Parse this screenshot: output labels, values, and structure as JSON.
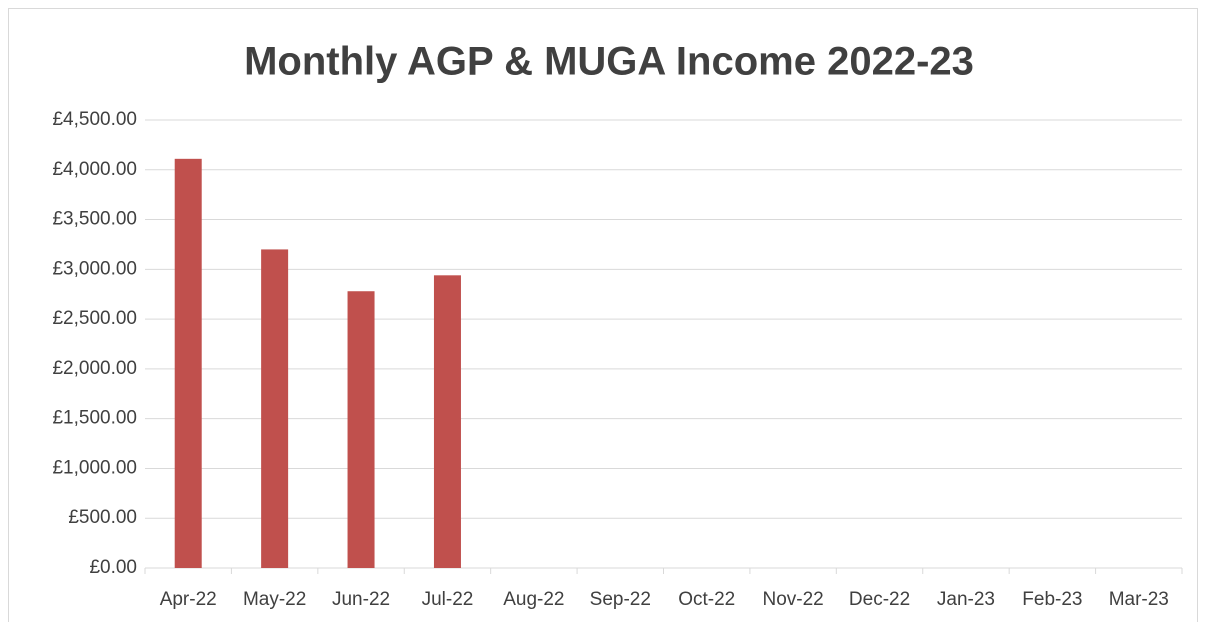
{
  "chart_data": {
    "type": "bar",
    "title": "Monthly AGP & MUGA Income 2022-23",
    "categories": [
      "Apr-22",
      "May-22",
      "Jun-22",
      "Jul-22",
      "Aug-22",
      "Sep-22",
      "Oct-22",
      "Nov-22",
      "Dec-22",
      "Jan-23",
      "Feb-23",
      "Mar-23"
    ],
    "values": [
      4110,
      3200,
      2780,
      2940,
      null,
      null,
      null,
      null,
      null,
      null,
      null,
      null
    ],
    "color": "#c0504d",
    "ylim": [
      0,
      4500
    ],
    "yticks": [
      {
        "value": 0,
        "label": "£0.00"
      },
      {
        "value": 500,
        "label": "£500.00"
      },
      {
        "value": 1000,
        "label": "£1,000.00"
      },
      {
        "value": 1500,
        "label": "£1,500.00"
      },
      {
        "value": 2000,
        "label": "£2,000.00"
      },
      {
        "value": 2500,
        "label": "£2,500.00"
      },
      {
        "value": 3000,
        "label": "£3,000.00"
      },
      {
        "value": 3500,
        "label": "£3,500.00"
      },
      {
        "value": 4000,
        "label": "£4,000.00"
      },
      {
        "value": 4500,
        "label": "£4,500.00"
      }
    ],
    "grid": true
  }
}
